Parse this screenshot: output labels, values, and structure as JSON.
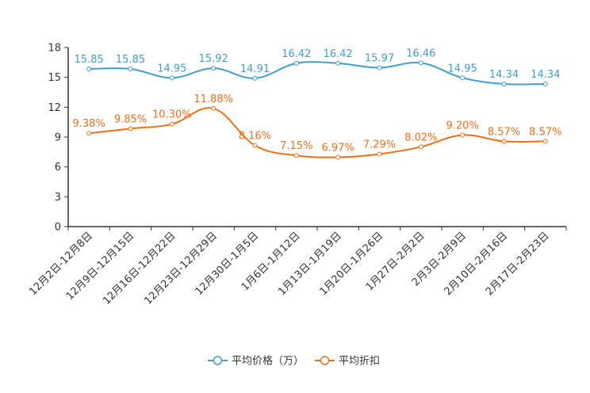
{
  "chart_data": {
    "type": "line",
    "title": "",
    "xlabel": "",
    "ylabel": "",
    "ylim": [
      0,
      18
    ],
    "yticks": [
      0,
      3,
      6,
      9,
      12,
      15,
      18
    ],
    "grid": false,
    "legend_position": "bottom-center",
    "categories": [
      "12月2日-12月8日",
      "12月9日-12月15日",
      "12月16日-12月22日",
      "12月23日-12月29日",
      "12月30日-1月5日",
      "1月6日-1月12日",
      "1月13日-1月19日",
      "1月20日-1月26日",
      "1月27日-2月2日",
      "2月3日-2月9日",
      "2月10日-2月16日",
      "2月17日-2月23日"
    ],
    "series": [
      {
        "name": "平均价格（万）",
        "color": "#3e9fce",
        "values": [
          15.85,
          15.85,
          14.95,
          15.92,
          14.91,
          16.42,
          16.42,
          15.97,
          16.46,
          14.95,
          14.34,
          14.34
        ],
        "labels": [
          "15.85",
          "15.85",
          "14.95",
          "15.92",
          "14.91",
          "16.42",
          "16.42",
          "15.97",
          "16.46",
          "14.95",
          "14.34",
          "14.34"
        ]
      },
      {
        "name": "平均折扣",
        "color": "#f07018",
        "values": [
          9.38,
          9.85,
          10.3,
          11.88,
          8.16,
          7.15,
          6.97,
          7.29,
          8.02,
          9.2,
          8.57,
          8.57
        ],
        "labels": [
          "9.38%",
          "9.85%",
          "10.30%",
          "11.88%",
          "8.16%",
          "7.15%",
          "6.97%",
          "7.29%",
          "8.02%",
          "9.20%",
          "8.57%",
          "8.57%"
        ]
      }
    ]
  }
}
